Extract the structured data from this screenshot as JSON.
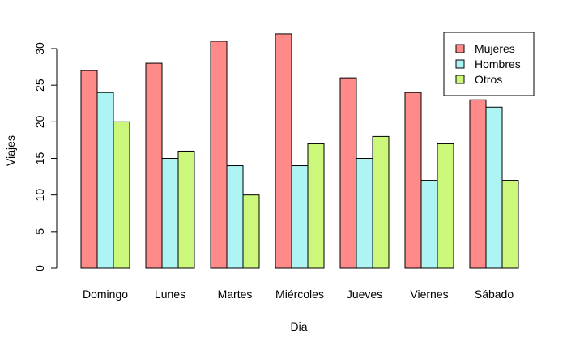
{
  "chart_data": {
    "type": "bar",
    "xlabel": "Dia",
    "ylabel": "Viajes",
    "ylim": [
      0,
      30
    ],
    "yticks": [
      "0",
      "5",
      "10",
      "15",
      "20",
      "25",
      "30"
    ],
    "categories": [
      "Domingo",
      "Lunes",
      "Martes",
      "Miércoles",
      "Jueves",
      "Viernes",
      "Sábado"
    ],
    "series": [
      {
        "name": "Mujeres",
        "color": "#ff8a8a",
        "values": [
          27,
          28,
          31,
          32,
          26,
          24,
          23
        ]
      },
      {
        "name": "Hombres",
        "color": "#aef4f4",
        "values": [
          24,
          15,
          14,
          14,
          15,
          12,
          22
        ]
      },
      {
        "name": "Otros",
        "color": "#cbf77a",
        "values": [
          20,
          16,
          10,
          17,
          18,
          17,
          12
        ]
      }
    ],
    "legend_position": "top-right",
    "grid": false
  }
}
